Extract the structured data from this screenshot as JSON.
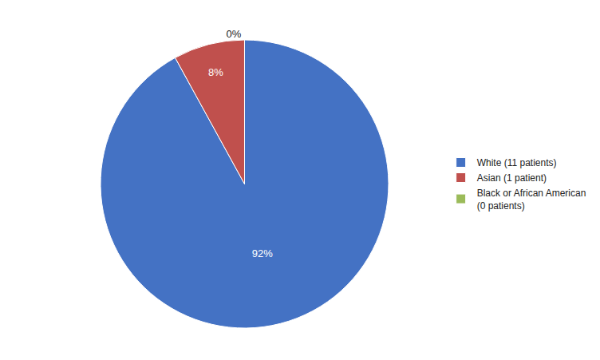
{
  "chart_data": {
    "type": "pie",
    "categories": [
      "White (11 patients)",
      "Asian (1 patient)",
      "Black or African American\n(0 patients)"
    ],
    "values": [
      92,
      8,
      0.001
    ],
    "value_labels": [
      "92%",
      "8%",
      "0%"
    ],
    "colors": [
      "#4472C4",
      "#C0504D",
      "#9BBB59"
    ],
    "data_labels": true,
    "legend": "right"
  }
}
